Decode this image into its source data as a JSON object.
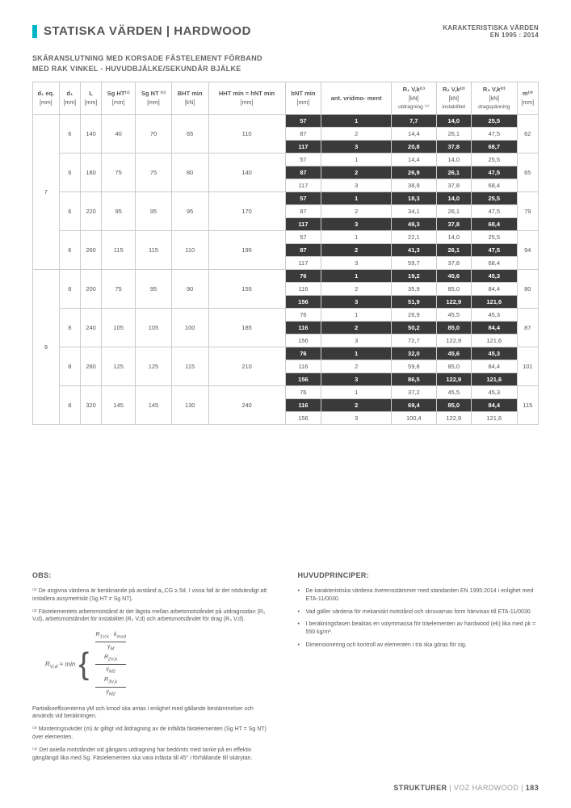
{
  "header": {
    "title": "STATISKA VÄRDEN | HARDWOOD",
    "right1": "KARAKTERISTISKA VÄRDEN",
    "right2": "EN 1995 : 2014"
  },
  "subtitle1": "SKÄRANSLUTNING MED KORSADE FÄSTELEMENT FÖRBAND",
  "subtitle2": "MED RAK VINKEL - HUVUDBJÄLKE/SEKUNDÄR BJÄLKE",
  "columns": [
    {
      "h": "d₁ eq.",
      "u": "[mm]"
    },
    {
      "h": "d₁",
      "u": "[mm]"
    },
    {
      "h": "L",
      "u": "[mm]"
    },
    {
      "h": "Sg HT⁽¹⁾",
      "u": "[mm]"
    },
    {
      "h": "Sg NT ⁽¹⁾",
      "u": "[mm]"
    },
    {
      "h": "BHT min",
      "u": "[kN]"
    },
    {
      "h": "HHT min = hNT min",
      "u": "[mm]"
    },
    {
      "h": "bNT min",
      "u": "[mm]"
    },
    {
      "h": "ant. vridmo-\nment",
      "u": ""
    },
    {
      "h": "R₁ V,k⁽¹⁾",
      "u": "[kN]",
      "s": "utdragning ⁽⁴⁾"
    },
    {
      "h": "R₂ V,k⁽²⁾",
      "u": "[kN]",
      "s": "instabilitet"
    },
    {
      "h": "R₃ V,k⁽²⁾",
      "u": "[kN]",
      "s": "dragspänning"
    },
    {
      "h": "m⁽³⁾",
      "u": "[mm]"
    }
  ],
  "groups": [
    {
      "d1eq": "7",
      "blocks": [
        {
          "d1": "6",
          "L": "140",
          "sgHT": "40",
          "sgNT": "70",
          "bht": "65",
          "hht": "110",
          "m": "62",
          "rows": [
            {
              "b": "57",
              "n": "1",
              "r1": "7,7",
              "r2": "14,0",
              "r3": "25,5",
              "hi": true
            },
            {
              "b": "87",
              "n": "2",
              "r1": "14,4",
              "r2": "26,1",
              "r3": "47,5"
            },
            {
              "b": "117",
              "n": "3",
              "r1": "20,8",
              "r2": "37,8",
              "r3": "68,7",
              "hi": true
            }
          ]
        },
        {
          "d1": "6",
          "L": "180",
          "sgHT": "75",
          "sgNT": "75",
          "bht": "80",
          "hht": "140",
          "m": "65",
          "rows": [
            {
              "b": "57",
              "n": "1",
              "r1": "14,4",
              "r2": "14,0",
              "r3": "25,5"
            },
            {
              "b": "87",
              "n": "2",
              "r1": "26,9",
              "r2": "26,1",
              "r3": "47,5",
              "hi": true
            },
            {
              "b": "117",
              "n": "3",
              "r1": "38,9",
              "r2": "37,8",
              "r3": "68,4"
            }
          ]
        },
        {
          "d1": "6",
          "L": "220",
          "sgHT": "95",
          "sgNT": "95",
          "bht": "95",
          "hht": "170",
          "m": "79",
          "rows": [
            {
              "b": "57",
              "n": "1",
              "r1": "18,3",
              "r2": "14,0",
              "r3": "25,5",
              "hi": true
            },
            {
              "b": "87",
              "n": "2",
              "r1": "34,1",
              "r2": "26,1",
              "r3": "47,5"
            },
            {
              "b": "117",
              "n": "3",
              "r1": "49,3",
              "r2": "37,8",
              "r3": "68,4",
              "hi": true
            }
          ]
        },
        {
          "d1": "6",
          "L": "260",
          "sgHT": "115",
          "sgNT": "115",
          "bht": "110",
          "hht": "195",
          "m": "94",
          "rows": [
            {
              "b": "57",
              "n": "1",
              "r1": "22,1",
              "r2": "14,0",
              "r3": "25,5"
            },
            {
              "b": "87",
              "n": "2",
              "r1": "41,3",
              "r2": "26,1",
              "r3": "47,5",
              "hi": true
            },
            {
              "b": "117",
              "n": "3",
              "r1": "59,7",
              "r2": "37,8",
              "r3": "68,4"
            }
          ]
        }
      ]
    },
    {
      "d1eq": "9",
      "blocks": [
        {
          "d1": "8",
          "L": "200",
          "sgHT": "75",
          "sgNT": "95",
          "bht": "90",
          "hht": "155",
          "m": "80",
          "rows": [
            {
              "b": "76",
              "n": "1",
              "r1": "19,2",
              "r2": "45,6",
              "r3": "45,3",
              "hi": true
            },
            {
              "b": "116",
              "n": "2",
              "r1": "35,9",
              "r2": "85,0",
              "r3": "84,4"
            },
            {
              "b": "156",
              "n": "3",
              "r1": "51,9",
              "r2": "122,9",
              "r3": "121,6",
              "hi": true
            }
          ]
        },
        {
          "d1": "8",
          "L": "240",
          "sgHT": "105",
          "sgNT": "105",
          "bht": "100",
          "hht": "185",
          "m": "87",
          "rows": [
            {
              "b": "76",
              "n": "1",
              "r1": "26,9",
              "r2": "45,5",
              "r3": "45,3"
            },
            {
              "b": "116",
              "n": "2",
              "r1": "50,2",
              "r2": "85,0",
              "r3": "84,4",
              "hi": true
            },
            {
              "b": "156",
              "n": "3",
              "r1": "72,7",
              "r2": "122,9",
              "r3": "121,6"
            }
          ]
        },
        {
          "d1": "8",
          "L": "280",
          "sgHT": "125",
          "sgNT": "125",
          "bht": "115",
          "hht": "210",
          "m": "101",
          "rows": [
            {
              "b": "76",
              "n": "1",
              "r1": "32,0",
              "r2": "45,6",
              "r3": "45,3",
              "hi": true
            },
            {
              "b": "116",
              "n": "2",
              "r1": "59,8",
              "r2": "85,0",
              "r3": "84,4"
            },
            {
              "b": "156",
              "n": "3",
              "r1": "86,5",
              "r2": "122,9",
              "r3": "121,6",
              "hi": true
            }
          ]
        },
        {
          "d1": "8",
          "L": "320",
          "sgHT": "145",
          "sgNT": "145",
          "bht": "130",
          "hht": "240",
          "m": "115",
          "rows": [
            {
              "b": "76",
              "n": "1",
              "r1": "37,2",
              "r2": "45,5",
              "r3": "45,3"
            },
            {
              "b": "116",
              "n": "2",
              "r1": "69,4",
              "r2": "85,0",
              "r3": "84,4",
              "hi": true
            },
            {
              "b": "156",
              "n": "3",
              "r1": "100,4",
              "r2": "122,9",
              "r3": "121,6"
            }
          ]
        }
      ]
    }
  ],
  "notes": {
    "left_h": "OBS:",
    "n1": "⁽¹⁾ De angivna värdena är beräknande på avstånd a₁,CG ≥ 5d. I vissa fall är det nödvändigt att installera assymetriskt (Sg HT ≠ Sg NT).",
    "n2": "⁽²⁾ Fästelementets arbetsmotstånd är det lägsta mellan arbetsmotståndet på utdragssidan (R₁ V,d), arbetsmotståndet för instabilitet (R₂ V,d) och arbetsmotståndet för drag (R₃ V,d).",
    "n2b": "Partialkoefficienterna γM och kmod ska antas i enlighet med gällande bestämmelser och används vid beräkningen.",
    "n3": "⁽³⁾ Monteringsvärdet (m) är giltigt vid åtdragning av de infällda fästelementen (Sg HT = Sg NT) över elementen.",
    "n4": "⁽⁴⁾ Det axiella motståndet vid gångans utdragning har bedömts med tanke på en effektiv gänglängd lika med Sg. Fästelementen ska vara infästa till 45° i förhållande till skärytan.",
    "right_h": "HUVUDPRINCIPER:",
    "p1": "De karakteristiska värdena överensstämmer med standarden EN 1995:2014 i enlighet med ETA-11/0030.",
    "p2": "Vad gäller värdena för mekaniskt motstånd och skruvarnas form hänvisas till ETA-11/0030.",
    "p3": "I beräkningsfasen beaktas en volymmassa för träelementen av hardwood (ek) lika med ρk = 550 kg/m³.",
    "p4": "Dimensionering och kontroll av elementen i trä ska göras för sig."
  },
  "footer": {
    "a": "STRUKTURER",
    "b": " | VOZ HARDWOOD | ",
    "c": "183"
  }
}
